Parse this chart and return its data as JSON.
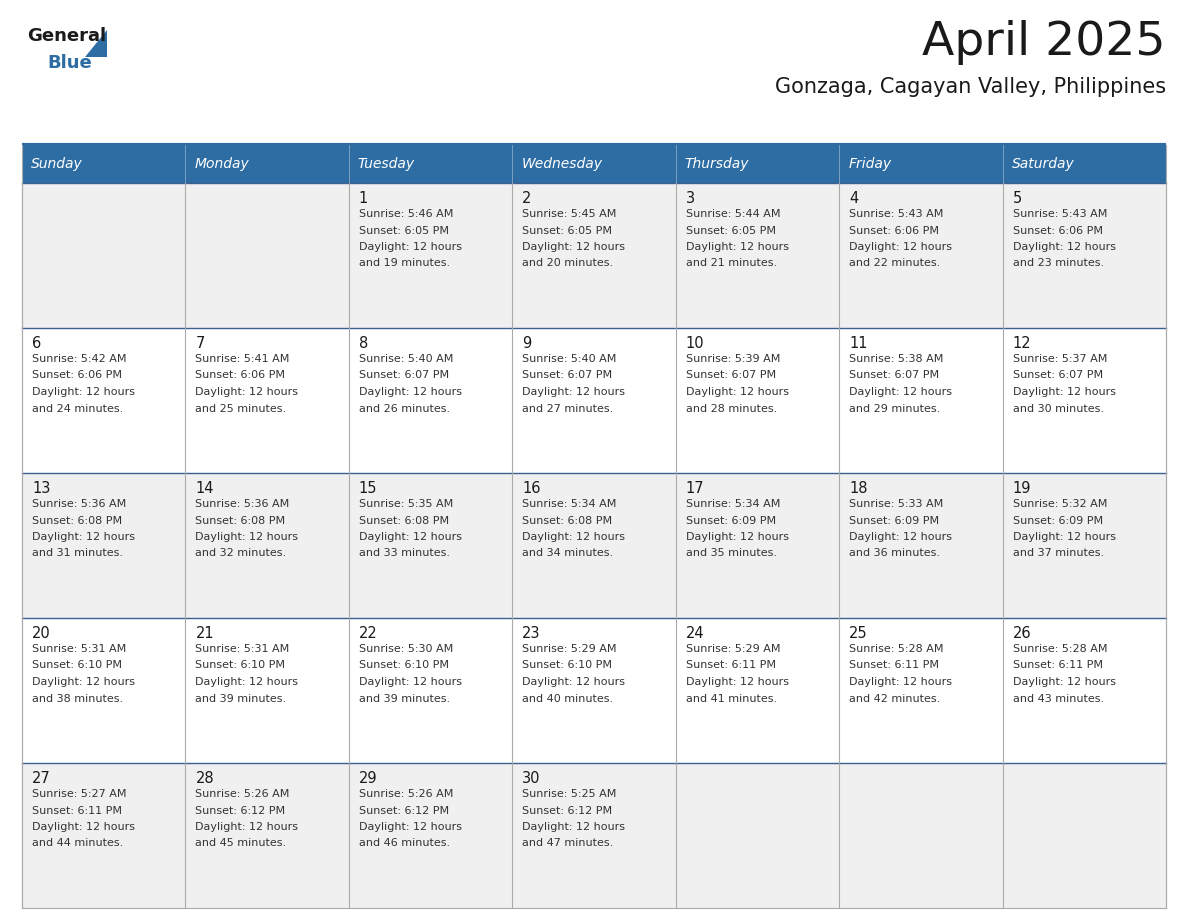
{
  "title": "April 2025",
  "subtitle": "Gonzaga, Cagayan Valley, Philippines",
  "header_bg": "#2E6DA4",
  "header_text": "#FFFFFF",
  "day_names": [
    "Sunday",
    "Monday",
    "Tuesday",
    "Wednesday",
    "Thursday",
    "Friday",
    "Saturday"
  ],
  "row_bg_odd": "#F0F0F0",
  "row_bg_even": "#FFFFFF",
  "cell_border": "#AAAAAA",
  "title_color": "#1A1A1A",
  "subtitle_color": "#1A1A1A",
  "day_num_color": "#1A1A1A",
  "cell_text_color": "#333333",
  "logo_general_color": "#1A1A1A",
  "logo_blue_color": "#2E6DA4",
  "fig_width": 11.88,
  "fig_height": 9.18,
  "weeks": [
    [
      {
        "date": "",
        "sunrise": "",
        "sunset": "",
        "daylight_line1": "",
        "daylight_line2": ""
      },
      {
        "date": "",
        "sunrise": "",
        "sunset": "",
        "daylight_line1": "",
        "daylight_line2": ""
      },
      {
        "date": "1",
        "sunrise": "5:46 AM",
        "sunset": "6:05 PM",
        "daylight_line1": "Daylight: 12 hours",
        "daylight_line2": "and 19 minutes."
      },
      {
        "date": "2",
        "sunrise": "5:45 AM",
        "sunset": "6:05 PM",
        "daylight_line1": "Daylight: 12 hours",
        "daylight_line2": "and 20 minutes."
      },
      {
        "date": "3",
        "sunrise": "5:44 AM",
        "sunset": "6:05 PM",
        "daylight_line1": "Daylight: 12 hours",
        "daylight_line2": "and 21 minutes."
      },
      {
        "date": "4",
        "sunrise": "5:43 AM",
        "sunset": "6:06 PM",
        "daylight_line1": "Daylight: 12 hours",
        "daylight_line2": "and 22 minutes."
      },
      {
        "date": "5",
        "sunrise": "5:43 AM",
        "sunset": "6:06 PM",
        "daylight_line1": "Daylight: 12 hours",
        "daylight_line2": "and 23 minutes."
      }
    ],
    [
      {
        "date": "6",
        "sunrise": "5:42 AM",
        "sunset": "6:06 PM",
        "daylight_line1": "Daylight: 12 hours",
        "daylight_line2": "and 24 minutes."
      },
      {
        "date": "7",
        "sunrise": "5:41 AM",
        "sunset": "6:06 PM",
        "daylight_line1": "Daylight: 12 hours",
        "daylight_line2": "and 25 minutes."
      },
      {
        "date": "8",
        "sunrise": "5:40 AM",
        "sunset": "6:07 PM",
        "daylight_line1": "Daylight: 12 hours",
        "daylight_line2": "and 26 minutes."
      },
      {
        "date": "9",
        "sunrise": "5:40 AM",
        "sunset": "6:07 PM",
        "daylight_line1": "Daylight: 12 hours",
        "daylight_line2": "and 27 minutes."
      },
      {
        "date": "10",
        "sunrise": "5:39 AM",
        "sunset": "6:07 PM",
        "daylight_line1": "Daylight: 12 hours",
        "daylight_line2": "and 28 minutes."
      },
      {
        "date": "11",
        "sunrise": "5:38 AM",
        "sunset": "6:07 PM",
        "daylight_line1": "Daylight: 12 hours",
        "daylight_line2": "and 29 minutes."
      },
      {
        "date": "12",
        "sunrise": "5:37 AM",
        "sunset": "6:07 PM",
        "daylight_line1": "Daylight: 12 hours",
        "daylight_line2": "and 30 minutes."
      }
    ],
    [
      {
        "date": "13",
        "sunrise": "5:36 AM",
        "sunset": "6:08 PM",
        "daylight_line1": "Daylight: 12 hours",
        "daylight_line2": "and 31 minutes."
      },
      {
        "date": "14",
        "sunrise": "5:36 AM",
        "sunset": "6:08 PM",
        "daylight_line1": "Daylight: 12 hours",
        "daylight_line2": "and 32 minutes."
      },
      {
        "date": "15",
        "sunrise": "5:35 AM",
        "sunset": "6:08 PM",
        "daylight_line1": "Daylight: 12 hours",
        "daylight_line2": "and 33 minutes."
      },
      {
        "date": "16",
        "sunrise": "5:34 AM",
        "sunset": "6:08 PM",
        "daylight_line1": "Daylight: 12 hours",
        "daylight_line2": "and 34 minutes."
      },
      {
        "date": "17",
        "sunrise": "5:34 AM",
        "sunset": "6:09 PM",
        "daylight_line1": "Daylight: 12 hours",
        "daylight_line2": "and 35 minutes."
      },
      {
        "date": "18",
        "sunrise": "5:33 AM",
        "sunset": "6:09 PM",
        "daylight_line1": "Daylight: 12 hours",
        "daylight_line2": "and 36 minutes."
      },
      {
        "date": "19",
        "sunrise": "5:32 AM",
        "sunset": "6:09 PM",
        "daylight_line1": "Daylight: 12 hours",
        "daylight_line2": "and 37 minutes."
      }
    ],
    [
      {
        "date": "20",
        "sunrise": "5:31 AM",
        "sunset": "6:10 PM",
        "daylight_line1": "Daylight: 12 hours",
        "daylight_line2": "and 38 minutes."
      },
      {
        "date": "21",
        "sunrise": "5:31 AM",
        "sunset": "6:10 PM",
        "daylight_line1": "Daylight: 12 hours",
        "daylight_line2": "and 39 minutes."
      },
      {
        "date": "22",
        "sunrise": "5:30 AM",
        "sunset": "6:10 PM",
        "daylight_line1": "Daylight: 12 hours",
        "daylight_line2": "and 39 minutes."
      },
      {
        "date": "23",
        "sunrise": "5:29 AM",
        "sunset": "6:10 PM",
        "daylight_line1": "Daylight: 12 hours",
        "daylight_line2": "and 40 minutes."
      },
      {
        "date": "24",
        "sunrise": "5:29 AM",
        "sunset": "6:11 PM",
        "daylight_line1": "Daylight: 12 hours",
        "daylight_line2": "and 41 minutes."
      },
      {
        "date": "25",
        "sunrise": "5:28 AM",
        "sunset": "6:11 PM",
        "daylight_line1": "Daylight: 12 hours",
        "daylight_line2": "and 42 minutes."
      },
      {
        "date": "26",
        "sunrise": "5:28 AM",
        "sunset": "6:11 PM",
        "daylight_line1": "Daylight: 12 hours",
        "daylight_line2": "and 43 minutes."
      }
    ],
    [
      {
        "date": "27",
        "sunrise": "5:27 AM",
        "sunset": "6:11 PM",
        "daylight_line1": "Daylight: 12 hours",
        "daylight_line2": "and 44 minutes."
      },
      {
        "date": "28",
        "sunrise": "5:26 AM",
        "sunset": "6:12 PM",
        "daylight_line1": "Daylight: 12 hours",
        "daylight_line2": "and 45 minutes."
      },
      {
        "date": "29",
        "sunrise": "5:26 AM",
        "sunset": "6:12 PM",
        "daylight_line1": "Daylight: 12 hours",
        "daylight_line2": "and 46 minutes."
      },
      {
        "date": "30",
        "sunrise": "5:25 AM",
        "sunset": "6:12 PM",
        "daylight_line1": "Daylight: 12 hours",
        "daylight_line2": "and 47 minutes."
      },
      {
        "date": "",
        "sunrise": "",
        "sunset": "",
        "daylight_line1": "",
        "daylight_line2": ""
      },
      {
        "date": "",
        "sunrise": "",
        "sunset": "",
        "daylight_line1": "",
        "daylight_line2": ""
      },
      {
        "date": "",
        "sunrise": "",
        "sunset": "",
        "daylight_line1": "",
        "daylight_line2": ""
      }
    ]
  ]
}
